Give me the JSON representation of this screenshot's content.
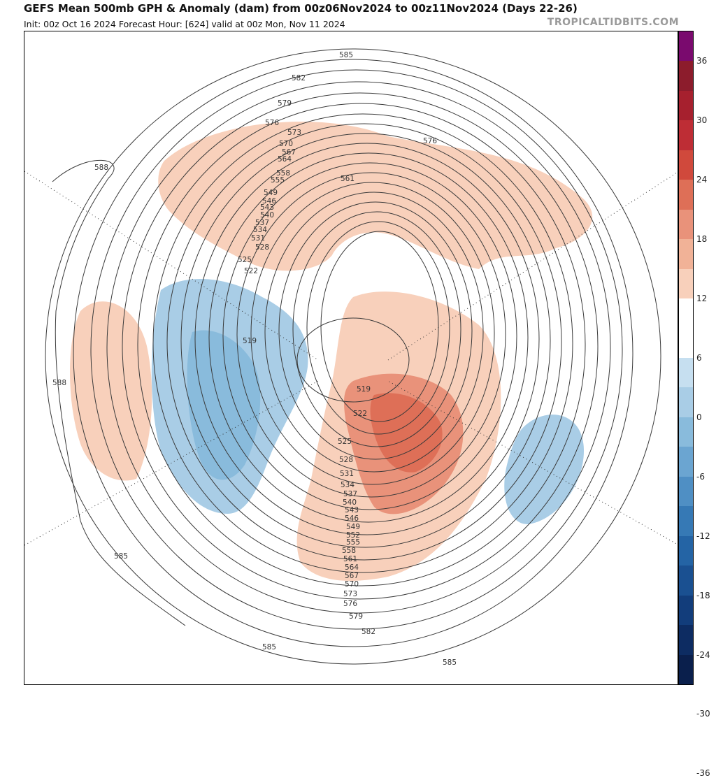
{
  "header": {
    "title": "GEFS Mean 500mb GPH & Anomaly (dam) from 00z06Nov2024 to 00z11Nov2024 (Days 22-26)",
    "subtitle": "Init: 00z Oct 16 2024   Forecast Hour: [624]   valid at 00z Mon, Nov 11 2024",
    "brand": "TROPICALTIDBITS.COM"
  },
  "colorbar": {
    "labels": [
      "36",
      "30",
      "24",
      "18",
      "12",
      "6",
      "0",
      "-6",
      "-12",
      "-18",
      "-24",
      "-30",
      "-36"
    ],
    "colors": [
      "#7a0a6e",
      "#8c1c2c",
      "#a6202e",
      "#be2d35",
      "#d0493c",
      "#de6f57",
      "#e9927a",
      "#f1b297",
      "#f8d0bb",
      "#ffffff",
      "#ffffff",
      "#c6dff0",
      "#a9cde6",
      "#89bbdc",
      "#6ba5d1",
      "#4f8fc4",
      "#3679b5",
      "#2464a5",
      "#1a5091",
      "#123d7b",
      "#0d2c62",
      "#0a1f4c"
    ]
  },
  "contours": {
    "values": [
      "588",
      "588",
      "585",
      "585",
      "585",
      "585",
      "582",
      "582",
      "579",
      "579",
      "576",
      "576",
      "576",
      "573",
      "573",
      "570",
      "570",
      "567",
      "567",
      "564",
      "564",
      "561",
      "561",
      "558",
      "558",
      "555",
      "555",
      "552",
      "549",
      "549",
      "546",
      "546",
      "543",
      "543",
      "540",
      "540",
      "537",
      "537",
      "534",
      "534",
      "531",
      "531",
      "528",
      "528",
      "525",
      "525",
      "522",
      "522",
      "519",
      "519"
    ]
  }
}
